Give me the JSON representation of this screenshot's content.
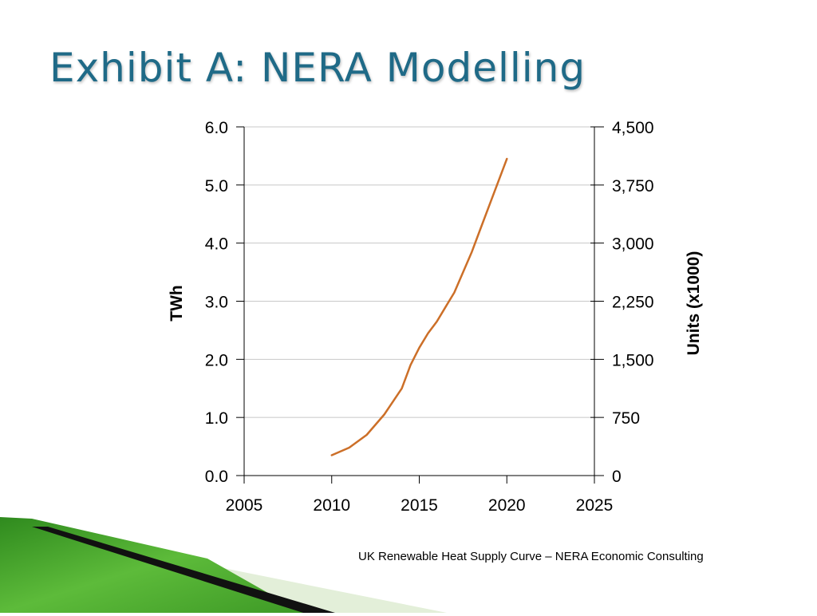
{
  "slide": {
    "title": "Exhibit A: NERA Modelling",
    "caption": "UK Renewable Heat Supply Curve – NERA Economic Consulting"
  },
  "chart_data": {
    "type": "line",
    "xlabel": "",
    "ylabel": "TWh",
    "y2label": "Units (x1000)",
    "xlim": [
      2005,
      2025
    ],
    "ylim": [
      0,
      6
    ],
    "y2lim": [
      0,
      4500
    ],
    "xticks": [
      "2005",
      "2010",
      "2015",
      "2020",
      "2025"
    ],
    "yticks": [
      "0.0",
      "1.0",
      "2.0",
      "3.0",
      "4.0",
      "5.0",
      "6.0"
    ],
    "y2ticks": [
      "0",
      "750",
      "1,500",
      "2,250",
      "3,000",
      "3,750",
      "4,500"
    ],
    "grid": "horizontal",
    "legend": "none",
    "colors": {
      "line": "#cc6f28",
      "grid": "#c8c8c8",
      "axis": "#000000"
    },
    "series": [
      {
        "x": [
          2010,
          2011,
          2012,
          2013,
          2014,
          2014.5,
          2015,
          2015.5,
          2016,
          2016.5,
          2017,
          2017.5,
          2018,
          2018.5,
          2019,
          2019.5,
          2020
        ],
        "y": [
          0.35,
          0.48,
          0.7,
          1.05,
          1.5,
          1.9,
          2.2,
          2.45,
          2.65,
          2.9,
          3.15,
          3.5,
          3.85,
          4.25,
          4.65,
          5.05,
          5.45
        ]
      }
    ]
  }
}
